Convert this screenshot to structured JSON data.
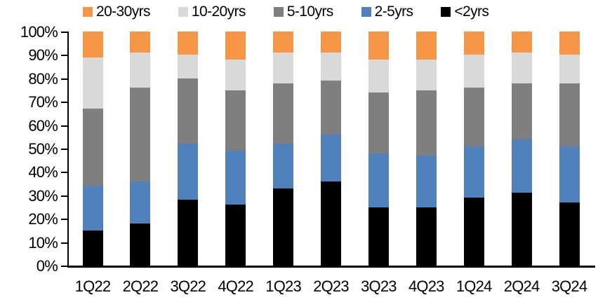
{
  "chart_data": {
    "type": "bar",
    "stacked": true,
    "stack_unit": "percent_of_total",
    "title": "",
    "xlabel": "",
    "ylabel": "",
    "grid": false,
    "legend_position": "top",
    "background_color": "#FFFFFF",
    "axis_color": "#000000",
    "ylim": [
      0,
      100
    ],
    "yticks": [
      "0%",
      "10%",
      "20%",
      "30%",
      "40%",
      "50%",
      "60%",
      "70%",
      "80%",
      "90%",
      "100%"
    ],
    "categories": [
      "1Q22",
      "2Q22",
      "3Q22",
      "4Q22",
      "1Q23",
      "2Q23",
      "3Q23",
      "4Q23",
      "1Q24",
      "2Q24",
      "3Q24"
    ],
    "series": [
      {
        "name": "<2yrs",
        "color": "#000000",
        "values": [
          15,
          18,
          28,
          26,
          33,
          36,
          25,
          25,
          29,
          31,
          27
        ]
      },
      {
        "name": "2-5yrs",
        "color": "#4F81BD",
        "values": [
          19,
          18,
          24,
          23,
          19,
          20,
          23,
          22,
          22,
          23,
          24
        ]
      },
      {
        "name": "5-10yrs",
        "color": "#7F7F7F",
        "values": [
          33,
          40,
          28,
          26,
          26,
          23,
          26,
          28,
          25,
          24,
          27
        ]
      },
      {
        "name": "10-20yrs",
        "color": "#D9D9D9",
        "values": [
          22,
          15,
          10,
          13,
          13,
          12,
          14,
          13,
          14,
          13,
          12
        ]
      },
      {
        "name": "20-30yrs",
        "color": "#F79646",
        "values": [
          11,
          9,
          10,
          12,
          9,
          9,
          12,
          12,
          10,
          9,
          10
        ]
      }
    ],
    "legend_order_series_indices": [
      4,
      3,
      2,
      1,
      0
    ]
  }
}
